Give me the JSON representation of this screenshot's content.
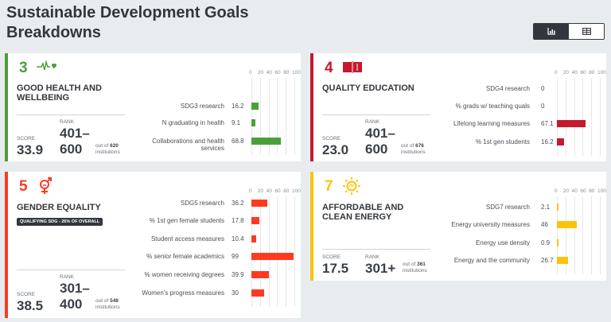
{
  "page": {
    "title": "Sustainable Development Goals Breakdowns"
  },
  "view_toggle": {
    "chart_icon": "bar-chart-icon",
    "table_icon": "table-icon"
  },
  "axis_ticks": [
    "0",
    "20",
    "40",
    "60",
    "80",
    "100"
  ],
  "cards": {
    "sdg3": {
      "number": "3",
      "icon": "heartbeat-icon",
      "color": "#4c9f38",
      "title": "Good Health and Wellbeing",
      "score_label": "SCORE",
      "score": "33.9",
      "rank_label": "RANK",
      "rank_top": "401–",
      "rank_bottom": "600",
      "out_of": "out of",
      "institutions_count": "620",
      "institutions": "institutions",
      "indicators": [
        {
          "label": "SDG3 research",
          "value": 16.2,
          "display": "16.2"
        },
        {
          "label": "N graduating in health",
          "value": 9.1,
          "display": "9.1"
        },
        {
          "label": "Collaborations and health services",
          "value": 68.8,
          "display": "68.8"
        }
      ]
    },
    "sdg4": {
      "number": "4",
      "icon": "book-icon",
      "color": "#c5192d",
      "title": "Quality Education",
      "score_label": "SCORE",
      "score": "23.0",
      "rank_label": "RANK",
      "rank_top": "401–",
      "rank_bottom": "600",
      "out_of": "out of",
      "institutions_count": "676",
      "institutions": "institutions",
      "indicators": [
        {
          "label": "SDG4 research",
          "value": 0,
          "display": "0"
        },
        {
          "label": "% grads w/ teaching quals",
          "value": 0,
          "display": "0"
        },
        {
          "label": "Lifelong learning measures",
          "value": 67.1,
          "display": "67.1"
        },
        {
          "label": "% 1st gen students",
          "value": 16.2,
          "display": "16.2"
        }
      ]
    },
    "sdg5": {
      "number": "5",
      "icon": "gender-equality-icon",
      "color": "#ff3a21",
      "title": "Gender Equality",
      "qualifying": "QUALIFYING SDG - 26% OF OVERALL",
      "score_label": "SCORE",
      "score": "38.5",
      "rank_label": "RANK",
      "rank_top": "301–",
      "rank_bottom": "400",
      "out_of": "out of",
      "institutions_count": "548",
      "institutions": "institutions",
      "indicators": [
        {
          "label": "SDG5 research",
          "value": 36.2,
          "display": "36.2"
        },
        {
          "label": "% 1st gen female students",
          "value": 17.8,
          "display": "17.8"
        },
        {
          "label": "Student access measures",
          "value": 10.4,
          "display": "10.4"
        },
        {
          "label": "% senior female academics",
          "value": 99,
          "display": "99"
        },
        {
          "label": "% women receiving degrees",
          "value": 39.9,
          "display": "39.9"
        },
        {
          "label": "Women's progress measures",
          "value": 30,
          "display": "30"
        }
      ]
    },
    "sdg7": {
      "number": "7",
      "icon": "sun-icon",
      "color": "#fcc30b",
      "title": "Affordable and Clean Energy",
      "score_label": "SCORE",
      "score": "17.5",
      "rank_label": "RANK",
      "rank": "301+",
      "out_of": "out of",
      "institutions_count": "361",
      "institutions": "institutions",
      "indicators": [
        {
          "label": "SDG7 research",
          "value": 2.1,
          "display": "2.1"
        },
        {
          "label": "Energy university measures",
          "value": 46,
          "display": "46"
        },
        {
          "label": "Energy use density",
          "value": 0.9,
          "display": "0.9"
        },
        {
          "label": "Energy and the community",
          "value": 26.7,
          "display": "26.7"
        }
      ]
    }
  }
}
